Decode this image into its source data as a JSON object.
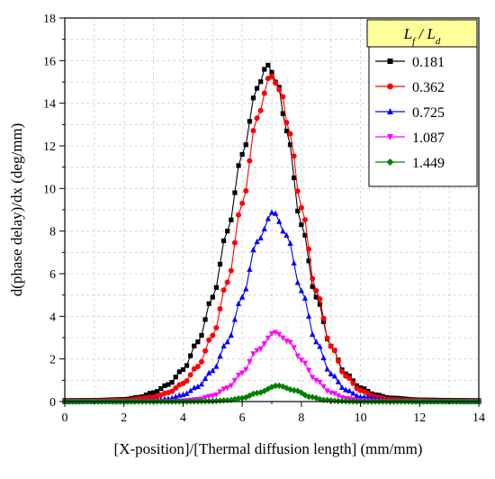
{
  "chart_data": {
    "type": "line",
    "title": "",
    "xlabel": "[X-position]/[Thermal diffusion length] (mm/mm)",
    "ylabel": "d(phase delay)/dx (deg/mm)",
    "xlim": [
      0,
      14
    ],
    "ylim": [
      0,
      18
    ],
    "xticks": [
      "0",
      "2",
      "4",
      "6",
      "8",
      "10",
      "12",
      "14"
    ],
    "yticks": [
      "0",
      "2",
      "4",
      "6",
      "8",
      "10",
      "12",
      "14",
      "16",
      "18"
    ],
    "grid": true,
    "legend_position": "top-right",
    "legend_title": {
      "base": "L",
      "sub": "f",
      "sep": " / ",
      "base2": "L",
      "sub2": "d"
    },
    "legend_title_bg": "#ffff99",
    "series": [
      {
        "name": "0.181",
        "color": "#000000",
        "marker": "square",
        "peak_x": 6.85,
        "peak_y": 15.8,
        "x": [
          0,
          1,
          2,
          2.5,
          3,
          3.5,
          4,
          4.5,
          5,
          5.5,
          6,
          6.5,
          6.85,
          7.2,
          7.5,
          8,
          8.5,
          9,
          9.5,
          10,
          10.5,
          11,
          12,
          13,
          14
        ],
        "y": [
          0.05,
          0.06,
          0.1,
          0.2,
          0.42,
          0.8,
          1.5,
          2.8,
          4.9,
          8.0,
          11.6,
          14.7,
          15.8,
          14.9,
          12.7,
          8.3,
          4.9,
          2.6,
          1.3,
          0.65,
          0.32,
          0.17,
          0.08,
          0.06,
          0.05
        ]
      },
      {
        "name": "0.362",
        "color": "#ff0000",
        "marker": "circle",
        "peak_x": 6.95,
        "peak_y": 15.3,
        "x": [
          0,
          1,
          2,
          3,
          3.5,
          4,
          4.5,
          5,
          5.5,
          6,
          6.5,
          6.95,
          7.3,
          7.6,
          8,
          8.5,
          9,
          9.5,
          10,
          10.5,
          11,
          12,
          13,
          14
        ],
        "y": [
          0.02,
          0.03,
          0.06,
          0.2,
          0.42,
          0.85,
          1.65,
          3.1,
          5.6,
          9.3,
          13.3,
          15.3,
          14.6,
          12.6,
          9.1,
          5.2,
          2.6,
          1.2,
          0.52,
          0.22,
          0.1,
          0.04,
          0.02,
          0.02
        ]
      },
      {
        "name": "0.725",
        "color": "#0000ff",
        "marker": "triangle-up",
        "peak_x": 7.05,
        "peak_y": 8.9,
        "x": [
          0,
          2,
          3,
          3.5,
          4,
          4.5,
          5,
          5.5,
          6,
          6.5,
          7.05,
          7.5,
          8,
          8.5,
          9,
          9.5,
          10,
          11,
          12,
          14
        ],
        "y": [
          0,
          0.01,
          0.05,
          0.13,
          0.32,
          0.7,
          1.45,
          2.8,
          4.9,
          7.5,
          8.9,
          7.8,
          5.2,
          2.8,
          1.3,
          0.55,
          0.22,
          0.05,
          0.01,
          0
        ]
      },
      {
        "name": "1.087",
        "color": "#ff00ff",
        "marker": "triangle-down",
        "peak_x": 7.1,
        "peak_y": 3.25,
        "x": [
          0,
          3,
          4,
          4.5,
          5,
          5.5,
          6,
          6.5,
          7.1,
          7.6,
          8,
          8.5,
          9,
          9.5,
          10,
          11,
          14
        ],
        "y": [
          0,
          0,
          0.04,
          0.1,
          0.27,
          0.65,
          1.35,
          2.4,
          3.25,
          2.8,
          1.95,
          1.0,
          0.42,
          0.15,
          0.05,
          0,
          0
        ]
      },
      {
        "name": "1.449",
        "color": "#008000",
        "marker": "diamond",
        "peak_x": 7.2,
        "peak_y": 0.75,
        "x": [
          0,
          4,
          5,
          5.5,
          6,
          6.5,
          7.2,
          7.8,
          8.3,
          8.8,
          9.3,
          10,
          14
        ],
        "y": [
          0,
          0,
          0.02,
          0.06,
          0.16,
          0.4,
          0.75,
          0.52,
          0.22,
          0.07,
          0.02,
          0,
          0
        ]
      }
    ]
  }
}
